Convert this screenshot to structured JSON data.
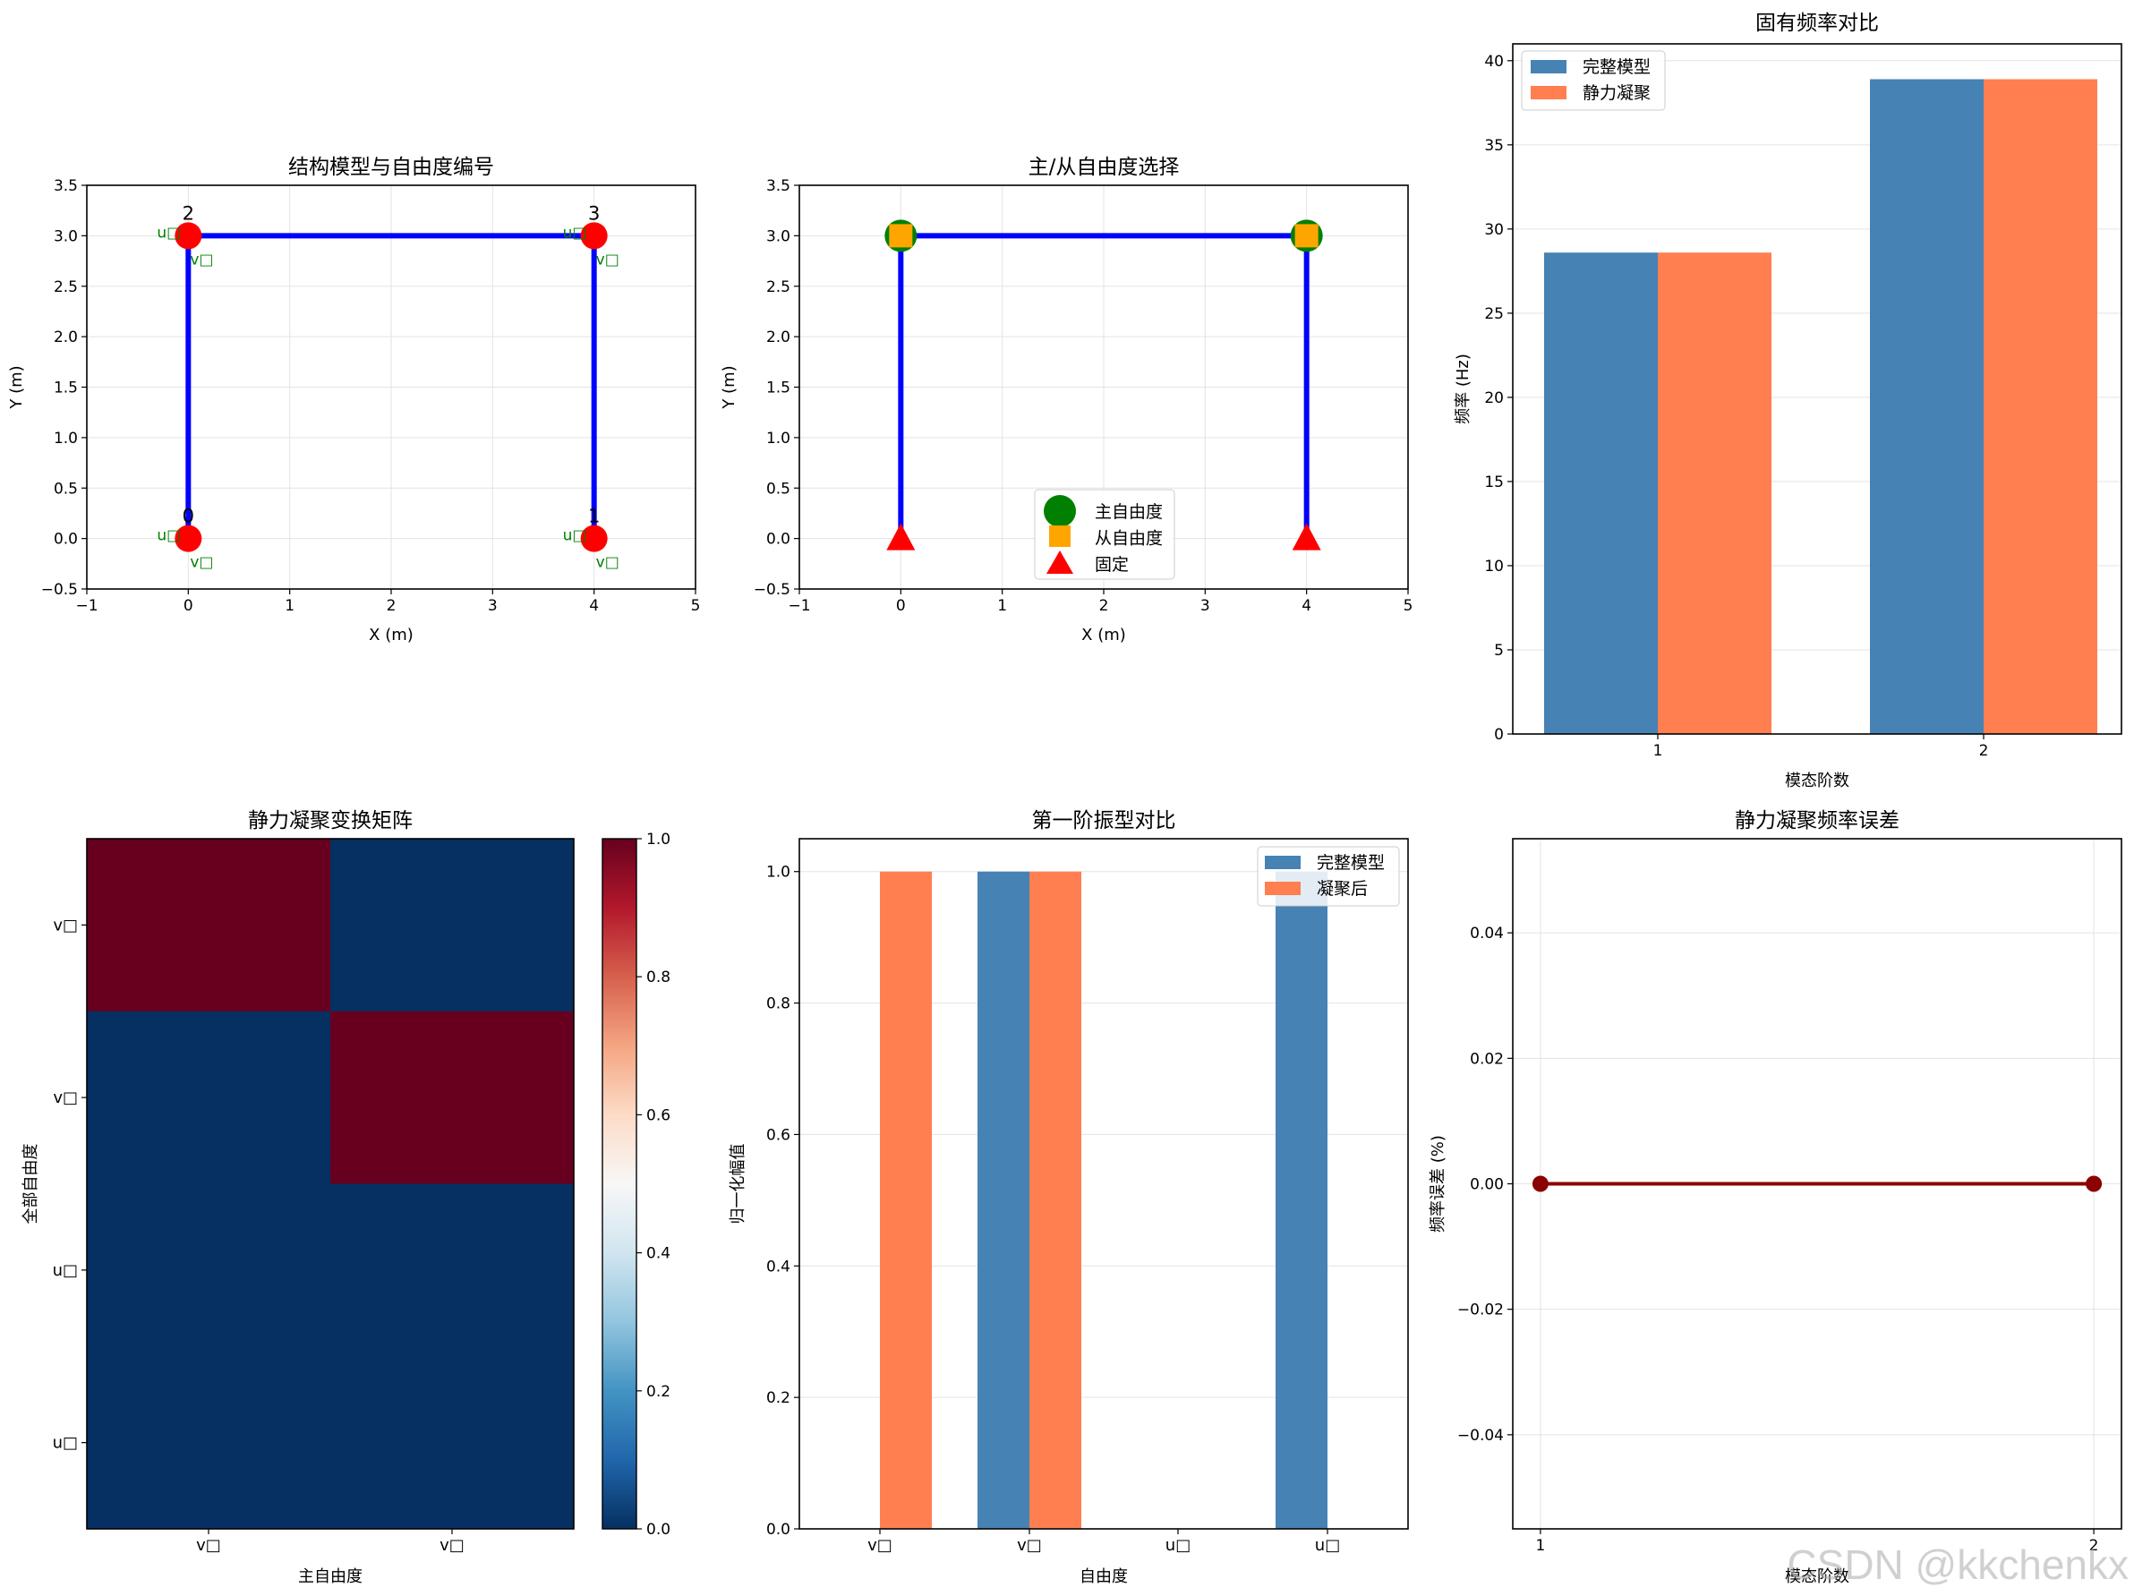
{
  "watermark": "CSDN @kkchenkx",
  "chart_data": [
    {
      "id": "model",
      "type": "scatter",
      "title": "结构模型与自由度编号",
      "xlabel": "X (m)",
      "ylabel": "Y (m)",
      "xlim": [
        -1,
        5
      ],
      "ylim": [
        -0.5,
        3.5
      ],
      "xticks": [
        -1,
        0,
        1,
        2,
        3,
        4,
        5
      ],
      "yticks": [
        -0.5,
        0.0,
        0.5,
        1.0,
        1.5,
        2.0,
        2.5,
        3.0,
        3.5
      ],
      "grid": true,
      "elements": [
        [
          0,
          2
        ],
        [
          2,
          3
        ],
        [
          3,
          1
        ]
      ],
      "nodes": [
        {
          "id": "0",
          "x": 0,
          "y": 0,
          "u_label": "u□",
          "v_label": "v□"
        },
        {
          "id": "1",
          "x": 4,
          "y": 0,
          "u_label": "u□",
          "v_label": "v□"
        },
        {
          "id": "2",
          "x": 0,
          "y": 3,
          "u_label": "u□",
          "v_label": "v□"
        },
        {
          "id": "3",
          "x": 4,
          "y": 3,
          "u_label": "u□",
          "v_label": "v□"
        }
      ],
      "colors": {
        "member": "#0000ff",
        "node": "#ff0000",
        "dof_label": "#008000"
      }
    },
    {
      "id": "dof",
      "type": "scatter",
      "title": "主/从自由度选择",
      "xlabel": "X (m)",
      "ylabel": "Y (m)",
      "xlim": [
        -1,
        5
      ],
      "ylim": [
        -0.5,
        3.5
      ],
      "xticks": [
        -1,
        0,
        1,
        2,
        3,
        4,
        5
      ],
      "yticks": [
        -0.5,
        0.0,
        0.5,
        1.0,
        1.5,
        2.0,
        2.5,
        3.0,
        3.5
      ],
      "grid": true,
      "elements": [
        [
          [
            0,
            0
          ],
          [
            0,
            3
          ]
        ],
        [
          [
            0,
            3
          ],
          [
            4,
            3
          ]
        ],
        [
          [
            4,
            3
          ],
          [
            4,
            0
          ]
        ]
      ],
      "master": [
        [
          0,
          3
        ],
        [
          4,
          3
        ]
      ],
      "slave": [
        [
          0,
          3
        ],
        [
          4,
          3
        ]
      ],
      "fixed": [
        [
          0,
          0
        ],
        [
          4,
          0
        ]
      ],
      "legend": {
        "placement": "lower-center",
        "entries": [
          "主自由度",
          "从自由度",
          "固定"
        ]
      },
      "colors": {
        "member": "#0000ff",
        "master": "#008000",
        "slave": "#ffa500",
        "fixed": "#ff0000"
      }
    },
    {
      "id": "freq",
      "type": "bar",
      "title": "固有频率对比",
      "xlabel": "模态阶数",
      "ylabel": "频率 (Hz)",
      "categories": [
        "1",
        "2"
      ],
      "ylim": [
        0,
        41
      ],
      "yticks": [
        0,
        5,
        10,
        15,
        20,
        25,
        30,
        35,
        40
      ],
      "grid": true,
      "series": [
        {
          "name": "完整模型",
          "values": [
            28.6,
            38.9
          ],
          "color": "#4682b4"
        },
        {
          "name": "静力凝聚",
          "values": [
            28.6,
            38.9
          ],
          "color": "#ff7f50"
        }
      ],
      "legend": {
        "placement": "top-left"
      }
    },
    {
      "id": "matrix",
      "type": "heatmap",
      "title": "静力凝聚变换矩阵",
      "xlabel": "主自由度",
      "ylabel": "全部自由度",
      "x_categories": [
        "v□",
        "v□"
      ],
      "y_categories": [
        "v□",
        "v□",
        "u□",
        "u□"
      ],
      "values": [
        [
          1,
          0
        ],
        [
          0,
          1
        ],
        [
          0,
          0
        ],
        [
          0,
          0
        ]
      ],
      "colorbar": {
        "min": 0.0,
        "max": 1.0,
        "ticks": [
          0.0,
          0.2,
          0.4,
          0.6,
          0.8,
          1.0
        ],
        "colormap": "RdBu_r"
      }
    },
    {
      "id": "mode",
      "type": "bar",
      "title": "第一阶振型对比",
      "xlabel": "自由度",
      "ylabel": "归一化幅值",
      "categories": [
        "v□",
        "v□",
        "u□",
        "u□"
      ],
      "ylim": [
        0,
        1.05
      ],
      "yticks": [
        0.0,
        0.2,
        0.4,
        0.6,
        0.8,
        1.0
      ],
      "grid": true,
      "series": [
        {
          "name": "完整模型",
          "values": [
            0,
            1.0,
            0,
            1.0
          ],
          "color": "#4682b4"
        },
        {
          "name": "凝聚后",
          "values": [
            1.0,
            1.0,
            0,
            0
          ],
          "color": "#ff7f50"
        }
      ],
      "legend": {
        "placement": "top-right"
      }
    },
    {
      "id": "error",
      "type": "line",
      "title": "静力凝聚频率误差",
      "xlabel": "模态阶数",
      "ylabel": "频率误差 (%)",
      "x": [
        1,
        2
      ],
      "y": [
        0.0,
        0.0
      ],
      "xlim": [
        0.95,
        2.05
      ],
      "ylim": [
        -0.055,
        0.055
      ],
      "xticks": [
        1,
        2
      ],
      "yticks": [
        -0.04,
        -0.02,
        0.0,
        0.02,
        0.04
      ],
      "ytick_labels": [
        "−0.04",
        "−0.02",
        "0.00",
        "0.02",
        "0.04"
      ],
      "grid": true,
      "color": "#8b0000"
    }
  ]
}
